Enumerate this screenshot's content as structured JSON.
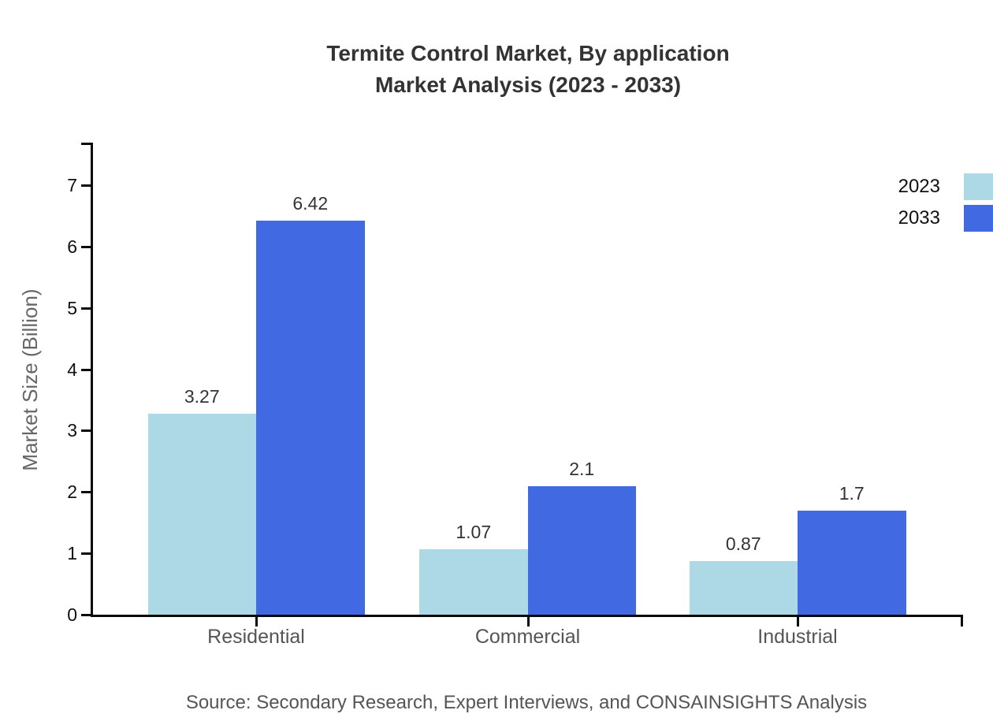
{
  "title": {
    "line1": "Termite Control Market, By application",
    "line2": "Market Analysis (2023 - 2033)"
  },
  "source": "Source: Secondary Research, Expert Interviews, and CONSAINSIGHTS Analysis",
  "legend": {
    "items": [
      {
        "label": "2023",
        "color": "#ADD8E6"
      },
      {
        "label": "2033",
        "color": "#4169E1"
      }
    ]
  },
  "chart_data": {
    "type": "bar",
    "title": "Termite Control Market, By application Market Analysis (2023 - 2033)",
    "categories": [
      "Residential",
      "Commercial",
      "Industrial"
    ],
    "series": [
      {
        "name": "2023",
        "color": "#ADD8E6",
        "values": [
          3.27,
          1.07,
          0.87
        ],
        "labels": [
          "3.27",
          "1.07",
          "0.87"
        ]
      },
      {
        "name": "2033",
        "color": "#4169E1",
        "values": [
          6.42,
          2.1,
          1.7
        ],
        "labels": [
          "6.42",
          "2.1",
          "1.7"
        ]
      }
    ],
    "xlabel": "",
    "ylabel": "Market Size (Billion)",
    "yticks": [
      0,
      1,
      2,
      3,
      4,
      5,
      6,
      7
    ],
    "ylim": [
      0,
      7.7
    ],
    "grid": false,
    "legend_position": "upper-right",
    "axis_color": "#0a0a0a"
  }
}
